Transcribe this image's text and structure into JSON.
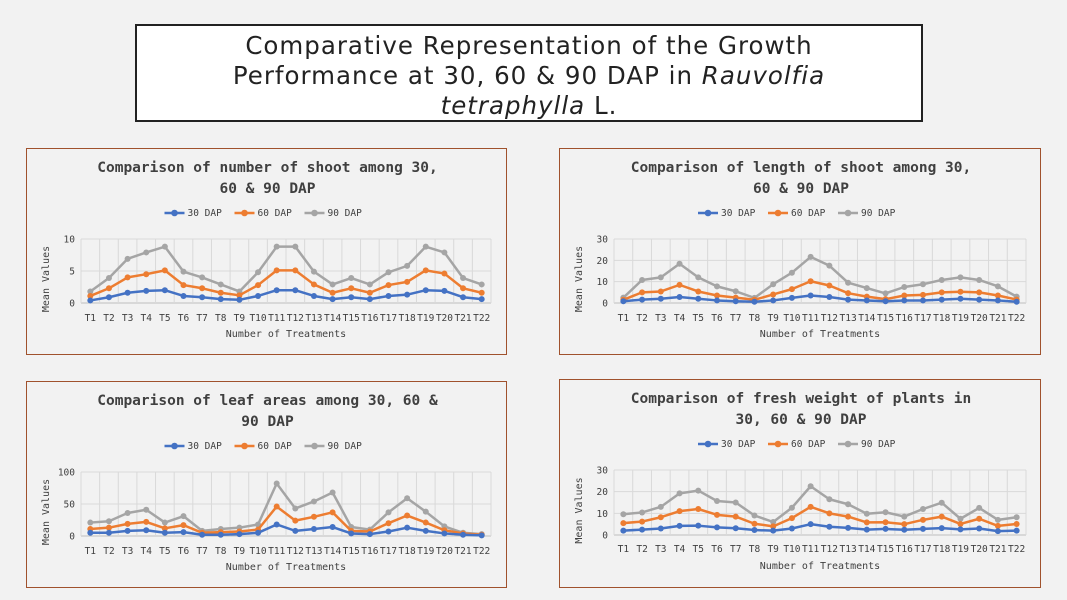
{
  "title": {
    "line1": "Comparative Representation of the Growth",
    "line2": "Performance at 30, 60 & 90 DAP in",
    "species": "Rauvolfia tetraphylla",
    "authority": "L."
  },
  "colors": {
    "30 DAP": "#4472c4",
    "60 DAP": "#ed7d31",
    "90 DAP": "#a5a5a5"
  },
  "chart_data": [
    {
      "type": "line",
      "title": "Comparison of number of shoot among 30, 60 & 90 DAP",
      "title_lines": [
        "Comparison of number of shoot among 30,",
        "60 & 90 DAP"
      ],
      "xlabel": "Number of Treatments",
      "ylabel": "Mean Values",
      "ylim": [
        0,
        10
      ],
      "yticks": [
        0,
        5,
        10
      ],
      "legend": "top",
      "grid": true,
      "categories": [
        "T1",
        "T2",
        "T3",
        "T4",
        "T5",
        "T6",
        "T7",
        "T8",
        "T9",
        "T10",
        "T11",
        "T12",
        "T13",
        "T14",
        "T15",
        "T16",
        "T17",
        "T18",
        "T19",
        "T20",
        "T21",
        "T22"
      ],
      "series": [
        {
          "name": "30 DAP",
          "values": [
            0.4,
            0.9,
            1.6,
            1.9,
            2.0,
            1.1,
            0.9,
            0.6,
            0.5,
            1.1,
            2.0,
            2.0,
            1.1,
            0.6,
            0.9,
            0.6,
            1.1,
            1.3,
            2.0,
            1.9,
            0.9,
            0.6
          ]
        },
        {
          "name": "60 DAP",
          "values": [
            1.1,
            2.3,
            4.0,
            4.5,
            5.1,
            2.8,
            2.3,
            1.6,
            1.2,
            2.8,
            5.1,
            5.1,
            2.9,
            1.6,
            2.3,
            1.6,
            2.8,
            3.3,
            5.1,
            4.6,
            2.3,
            1.6
          ]
        },
        {
          "name": "90 DAP",
          "values": [
            1.8,
            3.9,
            6.9,
            7.9,
            8.8,
            4.9,
            4.0,
            2.9,
            1.8,
            4.8,
            8.8,
            8.8,
            4.9,
            2.9,
            3.9,
            2.9,
            4.8,
            5.8,
            8.8,
            7.9,
            3.9,
            2.9
          ]
        }
      ]
    },
    {
      "type": "line",
      "title": "Comparison of length of shoot among 30, 60 & 90 DAP",
      "title_lines": [
        "Comparison of length of shoot among 30,",
        "60 & 90 DAP"
      ],
      "xlabel": "Number of Treatments",
      "ylabel": "Mean Values",
      "ylim": [
        0,
        30
      ],
      "yticks": [
        0,
        10,
        20,
        30
      ],
      "legend": "top",
      "grid": true,
      "categories": [
        "T1",
        "T2",
        "T3",
        "T4",
        "T5",
        "T6",
        "T7",
        "T8",
        "T9",
        "T10",
        "T11",
        "T12",
        "T13",
        "T14",
        "T15",
        "T16",
        "T17",
        "T18",
        "T19",
        "T20",
        "T21",
        "T22"
      ],
      "series": [
        {
          "name": "30 DAP",
          "values": [
            0.8,
            1.6,
            2.0,
            2.8,
            2.0,
            1.2,
            0.8,
            0.6,
            1.2,
            2.4,
            3.5,
            2.8,
            1.6,
            1.2,
            0.8,
            1.2,
            1.2,
            1.6,
            2.0,
            1.6,
            1.2,
            0.6
          ]
        },
        {
          "name": "60 DAP",
          "values": [
            1.5,
            5.0,
            5.4,
            8.5,
            5.4,
            3.5,
            2.5,
            1.5,
            4.0,
            6.5,
            10.2,
            8.2,
            4.6,
            3.0,
            1.8,
            3.5,
            3.8,
            5.0,
            5.3,
            5.0,
            3.5,
            1.6
          ]
        },
        {
          "name": "90 DAP",
          "values": [
            2.5,
            10.8,
            12.0,
            18.4,
            12.0,
            7.8,
            5.5,
            2.4,
            8.8,
            14.2,
            21.6,
            17.5,
            9.5,
            7.0,
            4.5,
            7.5,
            8.8,
            10.8,
            12.0,
            10.8,
            7.8,
            3.0
          ]
        }
      ]
    },
    {
      "type": "line",
      "title": "Comparison of leaf areas among 30, 60 & 90 DAP",
      "title_lines": [
        "Comparison of leaf areas among 30, 60 &",
        "90 DAP"
      ],
      "xlabel": "Number of Treatments",
      "ylabel": "Mean Values",
      "ylim": [
        0,
        100
      ],
      "yticks": [
        0,
        50,
        100
      ],
      "legend": "top",
      "grid": true,
      "categories": [
        "T1",
        "T2",
        "T3",
        "T4",
        "T5",
        "T6",
        "T7",
        "T8",
        "T9",
        "T10",
        "T11",
        "T12",
        "T13",
        "T14",
        "T15",
        "T16",
        "T17",
        "T18",
        "T19",
        "T20",
        "T21",
        "T22"
      ],
      "series": [
        {
          "name": "30 DAP",
          "values": [
            5,
            5,
            8,
            9,
            5,
            6,
            2,
            2,
            3,
            5,
            18,
            8,
            11,
            14,
            4,
            3,
            7,
            13,
            8,
            4,
            2,
            1
          ]
        },
        {
          "name": "60 DAP",
          "values": [
            11,
            13,
            19,
            22,
            12,
            17,
            5,
            6,
            7,
            10,
            46,
            24,
            30,
            37,
            8,
            7,
            20,
            32,
            21,
            9,
            4,
            2
          ]
        },
        {
          "name": "90 DAP",
          "values": [
            21,
            23,
            36,
            41,
            21,
            31,
            8,
            11,
            13,
            18,
            82,
            43,
            54,
            68,
            14,
            10,
            37,
            59,
            38,
            15,
            5,
            3
          ]
        }
      ]
    },
    {
      "type": "line",
      "title": "Comparison of fresh weight of plants in 30, 60 & 90 DAP",
      "title_lines": [
        "Comparison of fresh weight of plants in",
        "30, 60 & 90 DAP"
      ],
      "xlabel": "Number of Treatments",
      "ylabel": "Mean Values",
      "ylim": [
        0,
        30
      ],
      "yticks": [
        0,
        10,
        20,
        30
      ],
      "legend": "top",
      "grid": true,
      "categories": [
        "T1",
        "T2",
        "T3",
        "T4",
        "T5",
        "T6",
        "T7",
        "T8",
        "T9",
        "T10",
        "T11",
        "T12",
        "T13",
        "T14",
        "T15",
        "T16",
        "T17",
        "T18",
        "T19",
        "T20",
        "T21",
        "T22"
      ],
      "series": [
        {
          "name": "30 DAP",
          "values": [
            2.0,
            2.5,
            3.0,
            4.2,
            4.3,
            3.5,
            3.1,
            2.3,
            2.0,
            3.0,
            5.0,
            3.8,
            3.3,
            2.5,
            2.8,
            2.4,
            2.8,
            3.2,
            2.6,
            3.0,
            1.8,
            2.0
          ]
        },
        {
          "name": "60 DAP",
          "values": [
            5.5,
            6.2,
            8.2,
            11.0,
            12.0,
            9.3,
            8.5,
            5.2,
            4.0,
            7.8,
            13.0,
            10.0,
            8.5,
            5.8,
            5.9,
            5.0,
            7.0,
            8.5,
            5.1,
            7.5,
            4.2,
            5.1
          ]
        },
        {
          "name": "90 DAP",
          "values": [
            9.6,
            10.4,
            13.0,
            19.2,
            20.5,
            15.7,
            15.0,
            9.0,
            6.0,
            12.6,
            22.5,
            16.5,
            14.2,
            9.8,
            10.5,
            8.5,
            12.0,
            14.9,
            7.5,
            12.5,
            7.0,
            8.2
          ]
        }
      ]
    }
  ]
}
